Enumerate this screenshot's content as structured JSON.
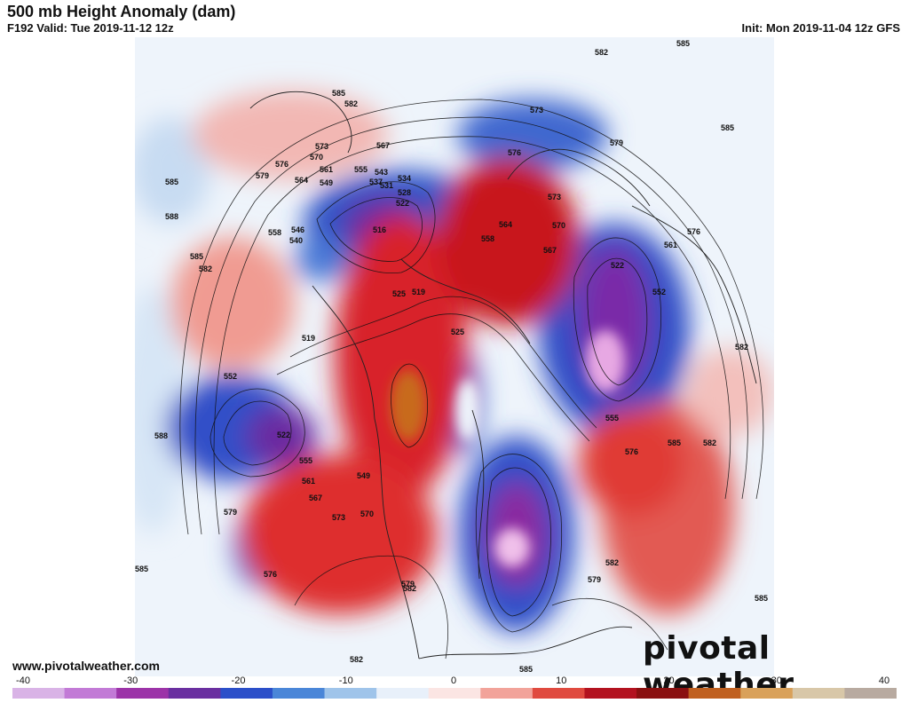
{
  "header": {
    "title": "500 mb Height Anomaly (dam)",
    "valid": "F192 Valid: Tue 2019-11-12 12z",
    "init": "Init: Mon 2019-11-04 12z GFS"
  },
  "footer": {
    "website": "www.pivotalweather.com",
    "brand": "pivotal weather"
  },
  "colorbar": {
    "ticks": [
      "-40",
      "-30",
      "-20",
      "-10",
      "0",
      "10",
      "20",
      "30",
      "40"
    ],
    "colors": [
      "#d9b3e6",
      "#c27ad6",
      "#9c33a8",
      "#6a2fa0",
      "#2b4fc9",
      "#4a86d8",
      "#9fc4ea",
      "#e8f0fa",
      "#fbe5e3",
      "#f2a39a",
      "#e04a3f",
      "#b3121f",
      "#8a1010",
      "#c0601f",
      "#d9a15a",
      "#d8c7a8",
      "#b8aaa0"
    ]
  },
  "map": {
    "contour_labels": [
      "585",
      "582",
      "573",
      "576",
      "579",
      "567",
      "570",
      "561",
      "555",
      "549",
      "543",
      "537",
      "534",
      "531",
      "528",
      "522",
      "516",
      "564",
      "558",
      "546",
      "540",
      "525",
      "519",
      "552",
      "588"
    ]
  }
}
